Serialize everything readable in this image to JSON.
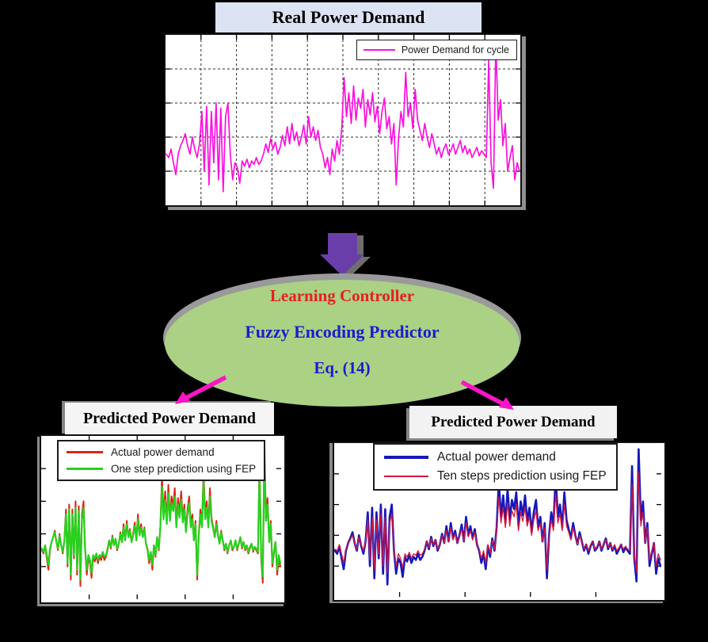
{
  "figure": {
    "background": "#000000",
    "top": {
      "title": "Real Power Demand",
      "title_bg": "#dce3f2"
    },
    "controller": {
      "lines": [
        {
          "text": "Learning Controller",
          "color": "#e81f1f"
        },
        {
          "text": "Fuzzy Encoding Predictor",
          "color": "#1c1ccd"
        },
        {
          "text": "Eq. (14)",
          "color": "#1c1ccd"
        }
      ],
      "ellipse_fill": "#aad184",
      "ellipse_shadow": "#9a9a9a",
      "input_arrow_color": "#6a3ea8",
      "input_arrow_shadow": "#6e6e6e",
      "branch_arrow_color": "#fb14c8"
    },
    "bottom_left": {
      "title": "Predicted Power Demand",
      "title_bg": "#f5f5f5"
    },
    "bottom_right": {
      "title": "Predicted Power Demand",
      "title_bg": "#f2f2f2"
    }
  },
  "chart_data": [
    {
      "id": "real-power-demand",
      "type": "line",
      "title": "Real Power Demand",
      "xlabel": "",
      "ylabel": "",
      "grid": true,
      "legend_position": "top-right",
      "axis_tick_labels_visible": false,
      "note": "axes carry no numeric labels in the image; values are percent of plot height from the bottom axis",
      "series": [
        {
          "name": "Power Demand for cycle",
          "color": "#fb10e0",
          "width": 1.7,
          "values": [
            30,
            28,
            33,
            25,
            18,
            30,
            35,
            38,
            42,
            35,
            30,
            40,
            33,
            28,
            36,
            55,
            20,
            58,
            12,
            55,
            25,
            60,
            15,
            57,
            8,
            52,
            60,
            30,
            15,
            25,
            22,
            13,
            26,
            23,
            27,
            22,
            26,
            24,
            28,
            24,
            26,
            30,
            36,
            31,
            39,
            33,
            37,
            30,
            34,
            41,
            35,
            46,
            36,
            48,
            38,
            43,
            35,
            40,
            47,
            36,
            52,
            40,
            46,
            38,
            44,
            34,
            30,
            22,
            28,
            18,
            33,
            26,
            38,
            30,
            45,
            75,
            52,
            66,
            48,
            70,
            50,
            63,
            57,
            68,
            46,
            62,
            53,
            66,
            49,
            58,
            42,
            55,
            63,
            45,
            52,
            36,
            48,
            12,
            40,
            55,
            46,
            78,
            52,
            60,
            45,
            68,
            50,
            44,
            38,
            48,
            40,
            34,
            42,
            36,
            30,
            34,
            28,
            33,
            36,
            30,
            32,
            36,
            30,
            34,
            38,
            31,
            35,
            30,
            33,
            28,
            31,
            34,
            29,
            32,
            30,
            28,
            85,
            25,
            10,
            96,
            50,
            62,
            35,
            48,
            20,
            28,
            35,
            15,
            25,
            20
          ]
        }
      ]
    },
    {
      "id": "one-step-prediction",
      "type": "line",
      "title": "Predicted Power Demand",
      "xlabel": "",
      "ylabel": "",
      "grid": false,
      "legend_position": "top-left",
      "axis_tick_labels_visible": false,
      "series": [
        {
          "name": "Actual power demand",
          "color": "#dd2518",
          "width": 2,
          "values": [
            30,
            28,
            33,
            25,
            18,
            30,
            35,
            38,
            42,
            35,
            30,
            40,
            33,
            28,
            36,
            55,
            20,
            58,
            12,
            55,
            25,
            60,
            15,
            57,
            8,
            52,
            60,
            30,
            15,
            25,
            22,
            13,
            26,
            23,
            27,
            22,
            26,
            24,
            28,
            24,
            26,
            30,
            36,
            31,
            39,
            33,
            37,
            30,
            34,
            41,
            35,
            46,
            36,
            48,
            38,
            43,
            35,
            40,
            47,
            36,
            52,
            40,
            46,
            38,
            44,
            34,
            30,
            22,
            28,
            18,
            33,
            26,
            38,
            30,
            45,
            75,
            52,
            66,
            48,
            70,
            50,
            63,
            57,
            68,
            46,
            62,
            53,
            66,
            49,
            58,
            42,
            55,
            63,
            45,
            52,
            36,
            48,
            12,
            40,
            55,
            46,
            78,
            52,
            60,
            45,
            68,
            50,
            44,
            38,
            48,
            40,
            34,
            42,
            36,
            30,
            34,
            28,
            33,
            36,
            30,
            32,
            36,
            30,
            34,
            38,
            31,
            35,
            30,
            33,
            28,
            31,
            34,
            29,
            32,
            30,
            28,
            85,
            25,
            10,
            96,
            50,
            62,
            35,
            48,
            20,
            28,
            35,
            15,
            25,
            20
          ]
        },
        {
          "name": "One step prediction using FEP",
          "color": "#27d11e",
          "width": 2.2,
          "values": [
            31,
            29,
            33,
            27,
            21,
            31,
            35,
            38,
            41,
            35,
            31,
            39,
            33,
            29,
            36,
            52,
            22,
            55,
            15,
            52,
            27,
            56,
            18,
            54,
            12,
            49,
            56,
            31,
            18,
            27,
            24,
            16,
            27,
            25,
            28,
            24,
            27,
            26,
            29,
            26,
            27,
            31,
            36,
            32,
            38,
            33,
            37,
            31,
            34,
            40,
            35,
            44,
            36,
            46,
            38,
            42,
            35,
            39,
            45,
            36,
            49,
            39,
            44,
            38,
            43,
            34,
            31,
            24,
            29,
            21,
            33,
            27,
            38,
            31,
            44,
            69,
            49,
            61,
            46,
            65,
            48,
            59,
            54,
            63,
            44,
            58,
            50,
            61,
            47,
            55,
            41,
            52,
            59,
            44,
            49,
            36,
            46,
            15,
            39,
            52,
            44,
            72,
            49,
            56,
            44,
            63,
            48,
            43,
            38,
            46,
            39,
            34,
            41,
            36,
            31,
            34,
            29,
            33,
            36,
            31,
            32,
            36,
            31,
            34,
            38,
            32,
            35,
            31,
            33,
            29,
            32,
            34,
            30,
            32,
            31,
            29,
            78,
            27,
            14,
            87,
            48,
            58,
            35,
            46,
            22,
            29,
            35,
            18,
            27,
            22
          ]
        }
      ]
    },
    {
      "id": "ten-steps-prediction",
      "type": "line",
      "title": "Predicted Power Demand",
      "xlabel": "",
      "ylabel": "",
      "grid": false,
      "legend_position": "top-left",
      "axis_tick_labels_visible": false,
      "series": [
        {
          "name": "Actual power demand",
          "color": "#1717bb",
          "width": 2.6,
          "values": [
            30,
            28,
            33,
            25,
            18,
            30,
            35,
            38,
            42,
            35,
            30,
            40,
            33,
            28,
            36,
            55,
            20,
            58,
            12,
            55,
            25,
            60,
            15,
            57,
            8,
            52,
            60,
            30,
            15,
            25,
            22,
            13,
            26,
            23,
            27,
            22,
            26,
            24,
            28,
            24,
            26,
            30,
            36,
            31,
            39,
            33,
            37,
            30,
            34,
            41,
            35,
            46,
            36,
            48,
            38,
            43,
            35,
            40,
            47,
            36,
            52,
            40,
            46,
            38,
            44,
            34,
            30,
            22,
            28,
            18,
            33,
            26,
            38,
            30,
            45,
            75,
            52,
            66,
            48,
            70,
            50,
            63,
            57,
            68,
            46,
            62,
            53,
            66,
            49,
            58,
            42,
            55,
            63,
            45,
            52,
            36,
            48,
            12,
            40,
            55,
            46,
            78,
            52,
            60,
            45,
            68,
            50,
            44,
            38,
            48,
            40,
            34,
            42,
            36,
            30,
            34,
            28,
            33,
            36,
            30,
            32,
            36,
            30,
            34,
            38,
            31,
            35,
            30,
            33,
            28,
            31,
            34,
            29,
            32,
            30,
            28,
            85,
            25,
            10,
            96,
            50,
            62,
            35,
            48,
            20,
            28,
            35,
            15,
            25,
            20
          ]
        },
        {
          "name": "Ten steps prediction using FEP",
          "color": "#d6173c",
          "width": 1.3,
          "values": [
            31,
            30,
            34,
            28,
            22,
            31,
            35,
            37,
            40,
            35,
            31,
            39,
            34,
            30,
            36,
            50,
            24,
            52,
            18,
            50,
            28,
            54,
            20,
            52,
            15,
            48,
            54,
            31,
            20,
            28,
            25,
            19,
            28,
            26,
            29,
            25,
            28,
            27,
            30,
            27,
            28,
            31,
            36,
            32,
            38,
            34,
            37,
            31,
            34,
            40,
            35,
            43,
            36,
            45,
            37,
            41,
            35,
            39,
            44,
            36,
            48,
            39,
            43,
            37,
            42,
            34,
            31,
            25,
            30,
            22,
            34,
            28,
            37,
            31,
            43,
            65,
            48,
            58,
            45,
            61,
            46,
            56,
            52,
            60,
            43,
            55,
            49,
            58,
            46,
            52,
            40,
            50,
            56,
            43,
            48,
            36,
            45,
            18,
            39,
            50,
            43,
            67,
            48,
            54,
            43,
            60,
            46,
            42,
            37,
            45,
            39,
            34,
            40,
            36,
            31,
            34,
            30,
            34,
            36,
            31,
            33,
            36,
            31,
            34,
            37,
            32,
            35,
            31,
            34,
            30,
            32,
            34,
            31,
            33,
            31,
            30,
            73,
            28,
            16,
            81,
            46,
            55,
            35,
            45,
            24,
            30,
            35,
            20,
            28,
            24
          ]
        }
      ]
    }
  ]
}
